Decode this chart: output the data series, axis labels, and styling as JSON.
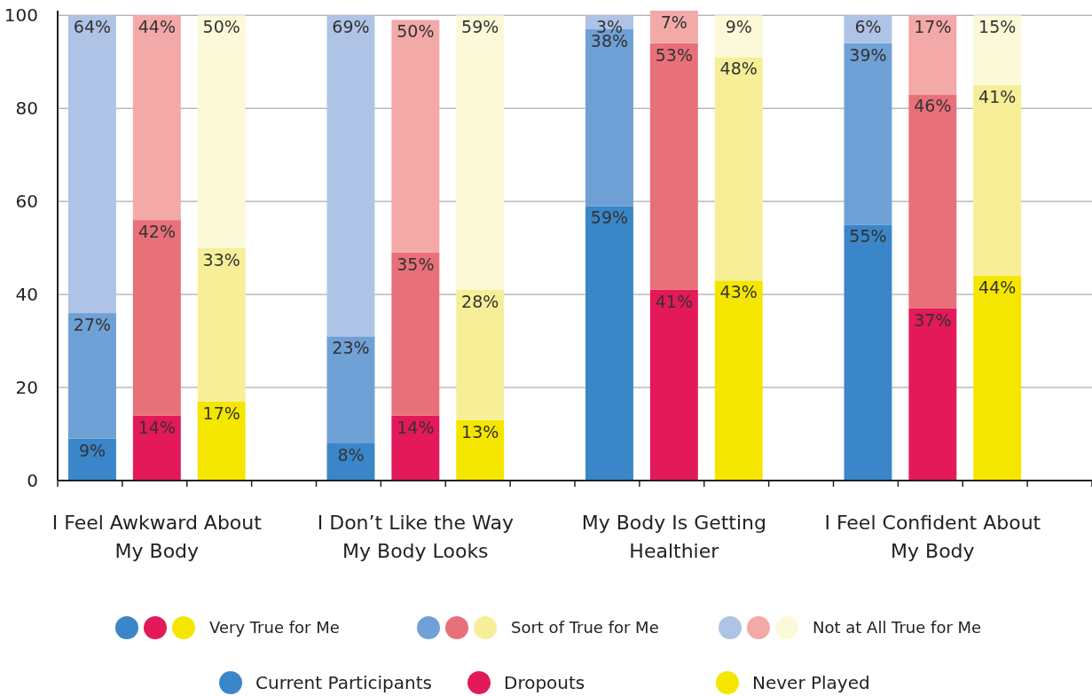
{
  "chart_data": {
    "type": "bar",
    "stacked": true,
    "grid": "y",
    "legend": "bottom",
    "categories": [
      null,
      null,
      null,
      null,
      null,
      null,
      null,
      null,
      null,
      null,
      null,
      null,
      null,
      null,
      null,
      null
    ],
    "ylim": [
      0,
      101
    ],
    "yticks": [
      0,
      20,
      40,
      60,
      80,
      100
    ],
    "annotations": [
      "I Feel Awkward About My Body",
      "I Don’t Like the Way My Body Looks",
      "My Body Is Getting Healthier",
      "I Feel Confident About My Body",
      "Current Participants",
      "Dropouts",
      "Never Played"
    ],
    "series": [
      {
        "name": "Very True for Me",
        "colors": [
          "#3a86c8",
          "#e3195a",
          "#f5e600",
          null,
          "#3a86c8",
          "#e3195a",
          "#f5e600",
          null,
          "#3a86c8",
          "#e3195a",
          "#f5e600",
          null,
          "#3a86c8",
          "#e3195a",
          "#f5e600",
          null
        ],
        "values": [
          9,
          14,
          17,
          null,
          8,
          14,
          13,
          null,
          59,
          41,
          43,
          null,
          55,
          37,
          44,
          null
        ],
        "value_labels": [
          "9%",
          "14%",
          "17%",
          null,
          "8%",
          "14%",
          "13%",
          null,
          "59%",
          "41%",
          "43%",
          null,
          "55%",
          "37%",
          "44%",
          null
        ]
      },
      {
        "name": "Sort of True for Me",
        "colors": [
          "#6fa0d6",
          "#e87079",
          "#f7ef98",
          null,
          "#6fa0d6",
          "#e87079",
          "#f7ef98",
          null,
          "#6fa0d6",
          "#e87079",
          "#f7ef98",
          null,
          "#6fa0d6",
          "#e87079",
          "#f7ef98",
          null
        ],
        "values": [
          27,
          42,
          33,
          null,
          23,
          35,
          28,
          null,
          38,
          53,
          48,
          null,
          39,
          46,
          41,
          null
        ],
        "value_labels": [
          "27%",
          "42%",
          "33%",
          null,
          "23%",
          "35%",
          "28%",
          null,
          "38%",
          "53%",
          "48%",
          null,
          "39%",
          "46%",
          "41%",
          null
        ]
      },
      {
        "name": "Not at All True for Me",
        "colors": [
          "#aec3e6",
          "#f3a9a8",
          "#fcf9d8",
          null,
          "#aec3e6",
          "#f3a9a8",
          "#fcf9d8",
          null,
          "#aec3e6",
          "#f3a9a8",
          "#fcf9d8",
          null,
          "#aec3e6",
          "#f3a9a8",
          "#fcf9d8",
          null
        ],
        "values": [
          64,
          44,
          50,
          null,
          69,
          50,
          59,
          null,
          3,
          7,
          9,
          null,
          6,
          17,
          15,
          null
        ],
        "value_labels": [
          "64%",
          "44%",
          "50%",
          null,
          "69%",
          "50%",
          "59%",
          null,
          "3%",
          "7%",
          "9%",
          null,
          "6%",
          "17%",
          "15%",
          null
        ]
      }
    ]
  }
}
